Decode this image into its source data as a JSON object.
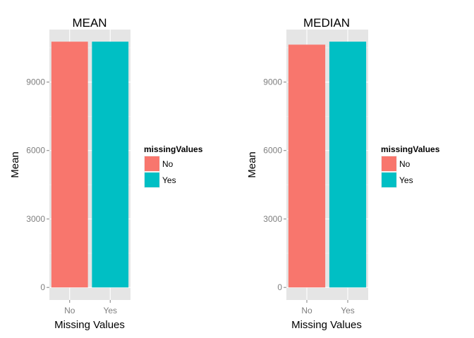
{
  "chart_data": [
    {
      "type": "bar",
      "title": "MEAN",
      "xlabel": "Missing Values",
      "ylabel": "Mean",
      "categories": [
        "No",
        "Yes"
      ],
      "values": [
        10770,
        10770
      ],
      "colors": [
        "#F8766D",
        "#00BFC4"
      ],
      "ylim": [
        -550,
        11300
      ],
      "yticks": [
        0,
        3000,
        6000,
        9000
      ],
      "ytick_labels": [
        "0",
        "3000",
        "6000",
        "9000"
      ],
      "grid": true,
      "panel_background": "#E5E5E5",
      "legend": {
        "title": "missingValues",
        "position": "right",
        "items": [
          {
            "label": "No",
            "color": "#F8766D"
          },
          {
            "label": "Yes",
            "color": "#00BFC4"
          }
        ]
      }
    },
    {
      "type": "bar",
      "title": "MEDIAN",
      "xlabel": "Missing Values",
      "ylabel": "Mean",
      "categories": [
        "No",
        "Yes"
      ],
      "values": [
        10640,
        10770
      ],
      "colors": [
        "#F8766D",
        "#00BFC4"
      ],
      "ylim": [
        -550,
        11300
      ],
      "yticks": [
        0,
        3000,
        6000,
        9000
      ],
      "ytick_labels": [
        "0",
        "3000",
        "6000",
        "9000"
      ],
      "grid": true,
      "panel_background": "#E5E5E5",
      "legend": {
        "title": "missingValues",
        "position": "right",
        "items": [
          {
            "label": "No",
            "color": "#F8766D"
          },
          {
            "label": "Yes",
            "color": "#00BFC4"
          }
        ]
      }
    }
  ]
}
